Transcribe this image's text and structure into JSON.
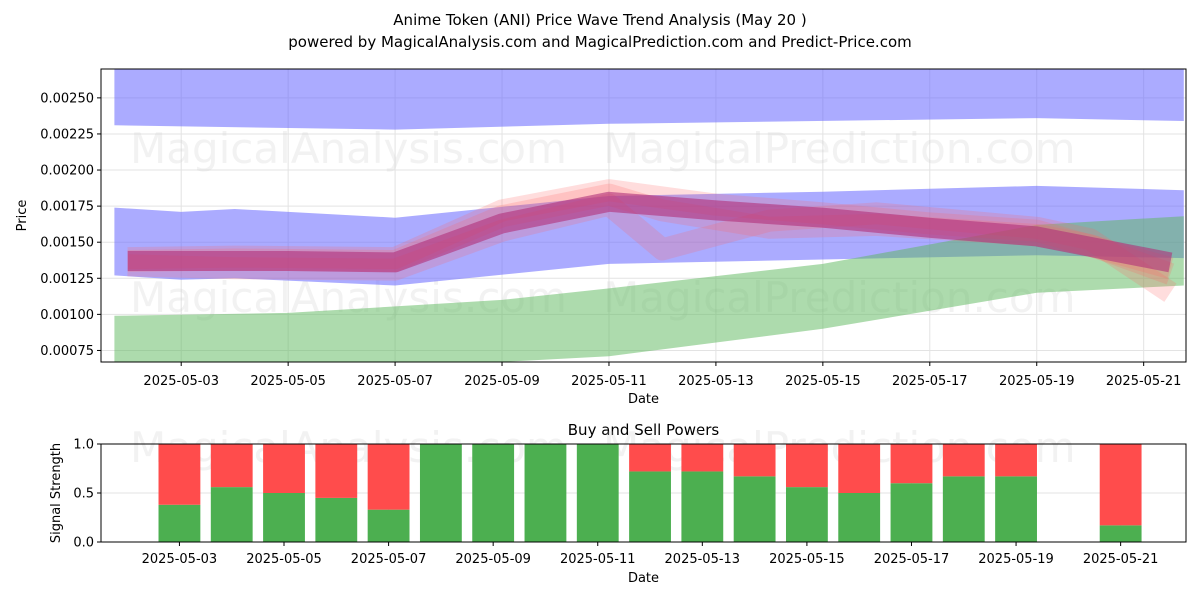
{
  "header": {
    "title": "Anime Token (ANI) Price Wave Trend Analysis (May 20 )",
    "subtitle": "powered by MagicalAnalysis.com and MagicalPrediction.com and Predict-Price.com"
  },
  "watermarks": [
    "MagicalAnalysis.com",
    "MagicalPrediction.com"
  ],
  "colors": {
    "blue_band": "#6666ff",
    "green_band": "#5cb85c",
    "magenta_line": "#b0317a",
    "red_wave": "#ff6666",
    "buy": "#4caf50",
    "sell": "#ff4c4c"
  },
  "chart_data": [
    {
      "type": "area",
      "title": "",
      "xlabel": "Date",
      "ylabel": "Price",
      "xlim": [
        "2025-05-01T12:00",
        "2025-05-21T19:00"
      ],
      "ylim": [
        0.00067,
        0.0027
      ],
      "x_ticks": [
        "2025-05-03",
        "2025-05-05",
        "2025-05-07",
        "2025-05-09",
        "2025-05-11",
        "2025-05-13",
        "2025-05-15",
        "2025-05-17",
        "2025-05-19",
        "2025-05-21"
      ],
      "y_ticks": [
        0.00075,
        0.001,
        0.00125,
        0.0015,
        0.00175,
        0.002,
        0.00225,
        0.0025
      ],
      "y_tick_labels": [
        "0.00075",
        "0.00100",
        "0.00125",
        "0.00150",
        "0.00175",
        "0.00200",
        "0.00225",
        "0.00250"
      ],
      "grid": true,
      "bands": [
        {
          "color": "#6666ff",
          "x": [
            "2025-05-01T18:00",
            "2025-05-07",
            "2025-05-11",
            "2025-05-19",
            "2025-05-21T18:00"
          ],
          "upper": [
            0.0027,
            0.0027,
            0.0027,
            0.0027,
            0.0027
          ],
          "lower": [
            0.00231,
            0.00228,
            0.00232,
            0.00236,
            0.00234
          ]
        },
        {
          "color": "#6666ff",
          "x": [
            "2025-05-01T18:00",
            "2025-05-03",
            "2025-05-04",
            "2025-05-07",
            "2025-05-11",
            "2025-05-15",
            "2025-05-19",
            "2025-05-21T18:00"
          ],
          "upper": [
            0.00174,
            0.00171,
            0.00173,
            0.00167,
            0.00182,
            0.00185,
            0.00189,
            0.00186
          ],
          "lower": [
            0.00127,
            0.00124,
            0.00125,
            0.0012,
            0.00135,
            0.00138,
            0.00141,
            0.00139
          ]
        },
        {
          "color": "#5cb85c",
          "x": [
            "2025-05-01T18:00",
            "2025-05-05",
            "2025-05-09",
            "2025-05-11",
            "2025-05-15",
            "2025-05-19",
            "2025-05-21T18:00"
          ],
          "upper": [
            0.00099,
            0.00101,
            0.0011,
            0.00118,
            0.00135,
            0.00162,
            0.00168
          ],
          "lower": [
            0.00067,
            0.00067,
            0.00067,
            0.00071,
            0.0009,
            0.00115,
            0.0012
          ]
        }
      ],
      "series": [
        {
          "color": "#b0317a",
          "x": [
            "2025-05-02",
            "2025-05-03",
            "2025-05-05",
            "2025-05-07",
            "2025-05-09",
            "2025-05-11",
            "2025-05-13",
            "2025-05-15",
            "2025-05-17",
            "2025-05-19",
            "2025-05-21T12:00"
          ],
          "y": [
            0.00137,
            0.00137,
            0.00137,
            0.00136,
            0.00163,
            0.00178,
            0.00172,
            0.00167,
            0.0016,
            0.00154,
            0.00136
          ]
        }
      ],
      "waves": [
        {
          "color": "#ff6666",
          "x": [
            "2025-05-02",
            "2025-05-04",
            "2025-05-07",
            "2025-05-09",
            "2025-05-11",
            "2025-05-12",
            "2025-05-14",
            "2025-05-16",
            "2025-05-19",
            "2025-05-20",
            "2025-05-21T12:00"
          ],
          "y": [
            0.00137,
            0.00138,
            0.00137,
            0.00168,
            0.00183,
            0.00172,
            0.0016,
            0.00162,
            0.00155,
            0.00148,
            0.00128
          ]
        },
        {
          "color": "#ff6666",
          "x": [
            "2025-05-02",
            "2025-05-04",
            "2025-05-07",
            "2025-05-09",
            "2025-05-11",
            "2025-05-12",
            "2025-05-14",
            "2025-05-16",
            "2025-05-19",
            "2025-05-20",
            "2025-05-21T12:00"
          ],
          "y": [
            0.00134,
            0.00132,
            0.00131,
            0.00158,
            0.00176,
            0.00145,
            0.00165,
            0.0017,
            0.0016,
            0.00152,
            0.00115
          ]
        },
        {
          "color": "#ff6666",
          "x": [
            "2025-05-02",
            "2025-05-04",
            "2025-05-07",
            "2025-05-09",
            "2025-05-11",
            "2025-05-13",
            "2025-05-15",
            "2025-05-17",
            "2025-05-19",
            "2025-05-21T12:00"
          ],
          "y": [
            0.00139,
            0.0014,
            0.00139,
            0.00172,
            0.00186,
            0.00176,
            0.0017,
            0.00163,
            0.00158,
            0.00132
          ]
        }
      ]
    },
    {
      "type": "bar",
      "title": "Buy and Sell Powers",
      "xlabel": "Date",
      "ylabel": "Signal Strength",
      "ylim": [
        0,
        1
      ],
      "y_ticks": [
        0,
        0.5,
        1
      ],
      "y_tick_labels": [
        "0.0",
        "0.5",
        "1.0"
      ],
      "x_ticks": [
        "2025-05-03",
        "2025-05-05",
        "2025-05-07",
        "2025-05-09",
        "2025-05-11",
        "2025-05-13",
        "2025-05-15",
        "2025-05-17",
        "2025-05-19",
        "2025-05-21"
      ],
      "grid": true,
      "categories": [
        "2025-05-03",
        "2025-05-04",
        "2025-05-05",
        "2025-05-06",
        "2025-05-07",
        "2025-05-08",
        "2025-05-09",
        "2025-05-10",
        "2025-05-11",
        "2025-05-12",
        "2025-05-13",
        "2025-05-14",
        "2025-05-15",
        "2025-05-16",
        "2025-05-17",
        "2025-05-18",
        "2025-05-19",
        "2025-05-21"
      ],
      "series": [
        {
          "values": [
            0.38,
            0.56,
            0.5,
            0.45,
            0.33,
            1.0,
            1.0,
            1.0,
            1.0,
            0.72,
            0.72,
            0.67,
            0.56,
            0.5,
            0.6,
            0.67,
            0.67,
            0.17
          ],
          "color": "#4caf50"
        },
        {
          "values": [
            0.62,
            0.44,
            0.5,
            0.55,
            0.67,
            0.0,
            0.0,
            0.0,
            0.0,
            0.28,
            0.28,
            0.33,
            0.44,
            0.5,
            0.4,
            0.33,
            0.33,
            0.83
          ],
          "color": "#ff4c4c"
        }
      ]
    }
  ]
}
